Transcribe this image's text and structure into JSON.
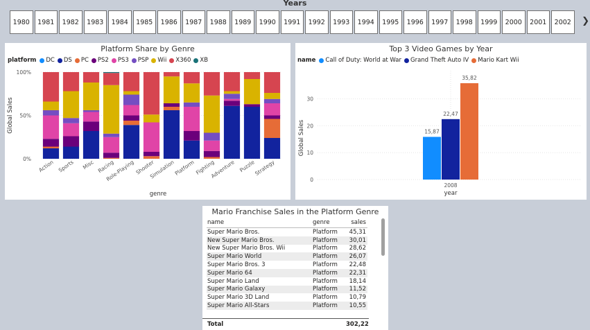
{
  "slicer": {
    "title": "Years",
    "years": [
      "1980",
      "1981",
      "1982",
      "1983",
      "1984",
      "1985",
      "1986",
      "1987",
      "1988",
      "1989",
      "1990",
      "1991",
      "1992",
      "1993",
      "1994",
      "1995",
      "1996",
      "1997",
      "1998",
      "1999",
      "2000",
      "2001",
      "2002"
    ]
  },
  "chart_data": [
    {
      "type": "bar",
      "stacked": "100%",
      "title": "Platform Share by Genre",
      "legend_title": "platform",
      "legend_position": "top-left",
      "xlabel": "genre",
      "ylabel": "Global Sales",
      "y_ticks": [
        "0%",
        "50%",
        "100%"
      ],
      "categories": [
        "Action",
        "Sports",
        "Misc",
        "Racing",
        "Role-Playing",
        "Shooter",
        "Simulation",
        "Platform",
        "Fighting",
        "Adventure",
        "Puzzle",
        "Strategy"
      ],
      "series": [
        {
          "name": "DC",
          "color": "#118DFF",
          "values": [
            0,
            0,
            0,
            0,
            0,
            0,
            0,
            0,
            0,
            0,
            0,
            0
          ]
        },
        {
          "name": "DS",
          "color": "#12239E",
          "values": [
            12,
            14,
            32,
            0,
            39,
            0,
            56,
            21,
            0,
            61,
            60,
            24
          ]
        },
        {
          "name": "PC",
          "color": "#E66C37",
          "values": [
            2,
            0,
            0,
            1,
            5,
            3,
            4,
            0,
            2,
            0,
            0,
            22
          ]
        },
        {
          "name": "PS2",
          "color": "#6B007B",
          "values": [
            9,
            12,
            11,
            6,
            6,
            5,
            4,
            11,
            7,
            6,
            3,
            4
          ]
        },
        {
          "name": "PS3",
          "color": "#E044A7",
          "values": [
            27,
            15,
            11,
            18,
            12,
            34,
            0,
            28,
            12,
            2,
            0,
            14
          ]
        },
        {
          "name": "PSP",
          "color": "#744EC2",
          "values": [
            6,
            6,
            2,
            4,
            12,
            0,
            0,
            5,
            9,
            6,
            0,
            5
          ]
        },
        {
          "name": "Wii",
          "color": "#D9B300",
          "values": [
            10,
            31,
            32,
            56,
            4,
            9,
            31,
            22,
            43,
            3,
            29,
            7
          ]
        },
        {
          "name": "X360",
          "color": "#D64550",
          "values": [
            34,
            22,
            12,
            14,
            22,
            49,
            5,
            13,
            27,
            22,
            8,
            24
          ]
        },
        {
          "name": "XB",
          "color": "#197278",
          "values": [
            0,
            0,
            0,
            1,
            0,
            0,
            0,
            0,
            0,
            0,
            0,
            0
          ]
        }
      ]
    },
    {
      "type": "bar",
      "title": "Top 3 Video Games by Year",
      "legend_title": "name",
      "legend_position": "top-left",
      "xlabel": "year",
      "ylabel": "Global Sales",
      "ylim": [
        0,
        38
      ],
      "y_ticks": [
        0,
        10,
        20,
        30
      ],
      "categories": [
        "2008"
      ],
      "series": [
        {
          "name": "Call of Duty: World at War",
          "color": "#118DFF",
          "values": [
            15.87
          ],
          "label": "15,87"
        },
        {
          "name": "Grand Theft Auto IV",
          "color": "#12239E",
          "values": [
            22.47
          ],
          "label": "22,47"
        },
        {
          "name": "Mario Kart Wii",
          "color": "#E66C37",
          "values": [
            35.82
          ],
          "label": "35,82"
        }
      ]
    },
    {
      "type": "table",
      "title": "Mario Franchise Sales in the Platform Genre",
      "columns": [
        "name",
        "genre",
        "sales"
      ],
      "rows": [
        [
          "Super Mario Bros.",
          "Platform",
          "45,31"
        ],
        [
          "New Super Mario Bros.",
          "Platform",
          "30,01"
        ],
        [
          "New Super Mario Bros. Wii",
          "Platform",
          "28,62"
        ],
        [
          "Super Mario World",
          "Platform",
          "26,07"
        ],
        [
          "Super Mario Bros. 3",
          "Platform",
          "22,48"
        ],
        [
          "Super Mario 64",
          "Platform",
          "22,31"
        ],
        [
          "Super Mario Land",
          "Platform",
          "18,14"
        ],
        [
          "Super Mario Galaxy",
          "Platform",
          "11,52"
        ],
        [
          "Super Mario 3D Land",
          "Platform",
          "10,79"
        ],
        [
          "Super Mario All-Stars",
          "Platform",
          "10,55"
        ]
      ],
      "total_label": "Total",
      "total_value": "302,22"
    }
  ]
}
